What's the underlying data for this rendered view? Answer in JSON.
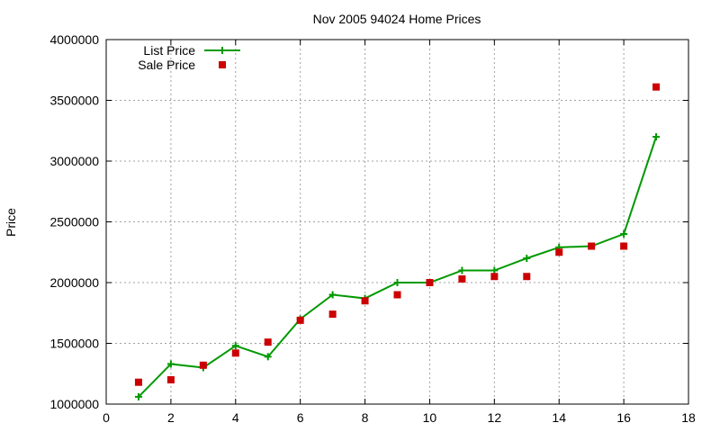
{
  "chart_data": {
    "type": "line",
    "title": "Nov 2005 94024 Home Prices",
    "xlabel": "",
    "ylabel": "Price",
    "xlim": [
      0,
      18
    ],
    "ylim": [
      1000000,
      4000000
    ],
    "xticks": [
      "0",
      "2",
      "4",
      "6",
      "8",
      "10",
      "12",
      "14",
      "16",
      "18"
    ],
    "yticks": [
      "1000000",
      "1500000",
      "2000000",
      "2500000",
      "3000000",
      "3500000",
      "4000000"
    ],
    "grid": true,
    "legend_position": "top-left",
    "series": [
      {
        "name": "List Price",
        "style": "line-plus",
        "color": "#009900",
        "x": [
          1,
          2,
          3,
          4,
          5,
          6,
          7,
          8,
          9,
          10,
          11,
          12,
          13,
          14,
          15,
          16,
          17
        ],
        "y": [
          1060000,
          1330000,
          1300000,
          1480000,
          1390000,
          1700000,
          1900000,
          1870000,
          2000000,
          2000000,
          2100000,
          2100000,
          2200000,
          2290000,
          2300000,
          2400000,
          3200000
        ]
      },
      {
        "name": "Sale Price",
        "style": "square",
        "color": "#cc0000",
        "x": [
          1,
          2,
          3,
          4,
          5,
          6,
          7,
          8,
          9,
          10,
          11,
          12,
          13,
          14,
          15,
          16,
          17
        ],
        "y": [
          1180000,
          1200000,
          1320000,
          1420000,
          1510000,
          1690000,
          1740000,
          1850000,
          1900000,
          2000000,
          2030000,
          2050000,
          2050000,
          2250000,
          2300000,
          2300000,
          3610000
        ]
      }
    ]
  }
}
